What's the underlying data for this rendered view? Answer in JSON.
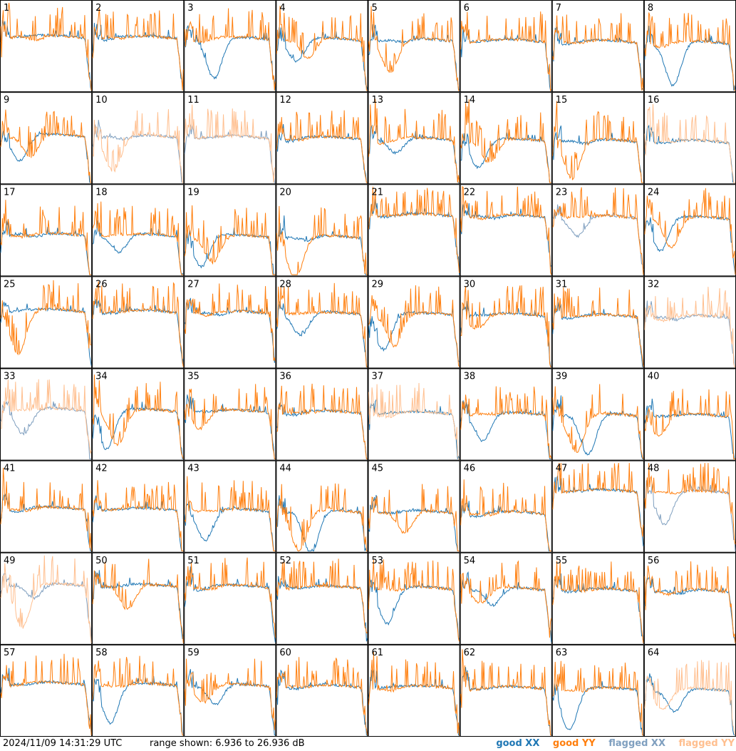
{
  "footer": {
    "timestamp": "2024/11/09 14:31:29 UTC",
    "range_text": "range shown: 6.936 to 26.936 dB"
  },
  "legend": {
    "good_xx": "good XX",
    "good_yy": "good YY",
    "flagged_xx": "flagged XX",
    "flagged_yy": "flagged YY"
  },
  "colors": {
    "good_xx": "#1f77b4",
    "good_yy": "#ff7f0e",
    "flagged_xx": "#7f9fbf",
    "flagged_yy": "#ffbf8f"
  },
  "chart_data": {
    "type": "line",
    "layout": "8x8 small multiples",
    "ylim": [
      6.936,
      26.936
    ],
    "y_unit": "dB",
    "panels": [
      {
        "id": "1",
        "xx": "good",
        "yy": "good"
      },
      {
        "id": "2",
        "xx": "good",
        "yy": "good"
      },
      {
        "id": "3",
        "xx": "good",
        "yy": "good"
      },
      {
        "id": "4",
        "xx": "good",
        "yy": "good"
      },
      {
        "id": "5",
        "xx": "good",
        "yy": "good"
      },
      {
        "id": "6",
        "xx": "good",
        "yy": "good"
      },
      {
        "id": "7",
        "xx": "good",
        "yy": "good"
      },
      {
        "id": "8",
        "xx": "good",
        "yy": "good"
      },
      {
        "id": "9",
        "xx": "good",
        "yy": "good"
      },
      {
        "id": "10",
        "xx": "flagged",
        "yy": "flagged"
      },
      {
        "id": "11",
        "xx": "flagged",
        "yy": "flagged"
      },
      {
        "id": "12",
        "xx": "good",
        "yy": "good"
      },
      {
        "id": "13",
        "xx": "good",
        "yy": "good"
      },
      {
        "id": "14",
        "xx": "good",
        "yy": "good"
      },
      {
        "id": "15",
        "xx": "good",
        "yy": "good"
      },
      {
        "id": "16",
        "xx": "good",
        "yy": "flagged"
      },
      {
        "id": "17",
        "xx": "good",
        "yy": "good"
      },
      {
        "id": "18",
        "xx": "good",
        "yy": "good"
      },
      {
        "id": "19",
        "xx": "good",
        "yy": "good"
      },
      {
        "id": "20",
        "xx": "good",
        "yy": "good"
      },
      {
        "id": "21",
        "xx": "good",
        "yy": "good"
      },
      {
        "id": "22",
        "xx": "good",
        "yy": "good"
      },
      {
        "id": "23",
        "xx": "flagged",
        "yy": "good"
      },
      {
        "id": "24",
        "xx": "good",
        "yy": "good"
      },
      {
        "id": "25",
        "xx": "good",
        "yy": "good"
      },
      {
        "id": "26",
        "xx": "good",
        "yy": "good"
      },
      {
        "id": "27",
        "xx": "good",
        "yy": "good"
      },
      {
        "id": "28",
        "xx": "good",
        "yy": "good"
      },
      {
        "id": "29",
        "xx": "good",
        "yy": "good"
      },
      {
        "id": "30",
        "xx": "good",
        "yy": "good"
      },
      {
        "id": "31",
        "xx": "good",
        "yy": "good"
      },
      {
        "id": "32",
        "xx": "flagged",
        "yy": "flagged"
      },
      {
        "id": "33",
        "xx": "flagged",
        "yy": "flagged"
      },
      {
        "id": "34",
        "xx": "good",
        "yy": "good"
      },
      {
        "id": "35",
        "xx": "good",
        "yy": "good"
      },
      {
        "id": "36",
        "xx": "good",
        "yy": "good"
      },
      {
        "id": "37",
        "xx": "good",
        "yy": "flagged"
      },
      {
        "id": "38",
        "xx": "good",
        "yy": "good"
      },
      {
        "id": "39",
        "xx": "good",
        "yy": "good"
      },
      {
        "id": "40",
        "xx": "good",
        "yy": "good"
      },
      {
        "id": "41",
        "xx": "good",
        "yy": "good"
      },
      {
        "id": "42",
        "xx": "good",
        "yy": "good"
      },
      {
        "id": "43",
        "xx": "good",
        "yy": "good"
      },
      {
        "id": "44",
        "xx": "good",
        "yy": "good"
      },
      {
        "id": "45",
        "xx": "good",
        "yy": "good"
      },
      {
        "id": "46",
        "xx": "good",
        "yy": "good"
      },
      {
        "id": "47",
        "xx": "good",
        "yy": "good"
      },
      {
        "id": "48",
        "xx": "flagged",
        "yy": "good"
      },
      {
        "id": "49",
        "xx": "flagged",
        "yy": "flagged"
      },
      {
        "id": "50",
        "xx": "good",
        "yy": "good"
      },
      {
        "id": "51",
        "xx": "good",
        "yy": "good"
      },
      {
        "id": "52",
        "xx": "good",
        "yy": "good"
      },
      {
        "id": "53",
        "xx": "good",
        "yy": "good"
      },
      {
        "id": "54",
        "xx": "good",
        "yy": "good"
      },
      {
        "id": "55",
        "xx": "good",
        "yy": "good"
      },
      {
        "id": "56",
        "xx": "good",
        "yy": "good"
      },
      {
        "id": "57",
        "xx": "good",
        "yy": "good"
      },
      {
        "id": "58",
        "xx": "good",
        "yy": "good"
      },
      {
        "id": "59",
        "xx": "good",
        "yy": "good"
      },
      {
        "id": "60",
        "xx": "good",
        "yy": "good"
      },
      {
        "id": "61",
        "xx": "good",
        "yy": "good"
      },
      {
        "id": "62",
        "xx": "good",
        "yy": "good"
      },
      {
        "id": "63",
        "xx": "good",
        "yy": "good"
      },
      {
        "id": "64",
        "xx": "good",
        "yy": "flagged"
      }
    ]
  }
}
